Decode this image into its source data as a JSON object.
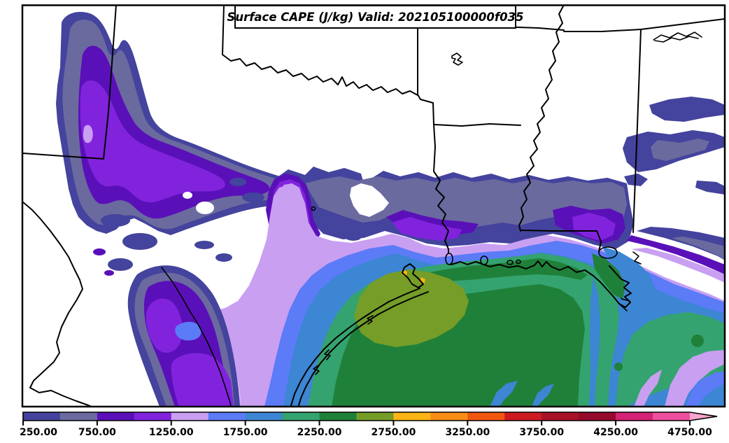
{
  "title_box": {
    "text": "Surface CAPE (J/kg) Valid: 202105100000f035"
  },
  "chart_data": {
    "type": "heatmap",
    "title": "Surface CAPE (J/kg) Valid: 202105100000f035",
    "variable": "Surface CAPE",
    "units": "J/kg",
    "valid_label": "202105100000f035",
    "region": "South-central United States (New Mexico, Texas, Oklahoma, Arkansas, Louisiana, Mississippi, Alabama) and northwestern Gulf of Mexico",
    "colorbar": {
      "min": 250,
      "max": 5000,
      "interval": 250,
      "overflow_arrow": true,
      "tick_values": [
        250,
        750,
        1250,
        1750,
        2250,
        2750,
        3250,
        3750,
        4250,
        4750
      ],
      "tick_labels": [
        "250.00",
        "750.00",
        "1250.00",
        "1750.00",
        "2250.00",
        "2750.00",
        "3250.00",
        "3750.00",
        "4250.00",
        "4750.00"
      ],
      "level_lower_bounds": [
        250,
        500,
        750,
        1000,
        1250,
        1500,
        1750,
        2000,
        2250,
        2500,
        2750,
        3000,
        3250,
        3500,
        3750,
        4000,
        4250,
        4500,
        4750
      ],
      "colors": [
        "#44439d",
        "#6b6a9f",
        "#5a10b8",
        "#8123dd",
        "#c99ff2",
        "#5b7bf7",
        "#3c86d3",
        "#35a36f",
        "#1f8139",
        "#759d28",
        "#fdb515",
        "#fb8d17",
        "#f1560f",
        "#cc1a20",
        "#a81126",
        "#960a2c",
        "#d42374",
        "#ee4f9f",
        "#f9a6cd"
      ]
    },
    "features": [
      "Maximum CAPE 2500-2750 J/kg (olive) over the upper Texas coast near Galveston Bay with isolated 2750-3000 J/kg (amber) specks",
      "Broad 2000-2500 J/kg (greens) across the northwestern Gulf of Mexico and coastal Louisiana",
      "1250-2000 J/kg (lavender and blues) banding across south Texas and offshore waters",
      "Secondary 750-1250 J/kg (purple) maxima over eastern New Mexico / Texas Panhandle and the Big Bend region",
      "CAPE below 250 J/kg (white) over central Texas, Oklahoma, Arkansas and Mississippi"
    ]
  }
}
